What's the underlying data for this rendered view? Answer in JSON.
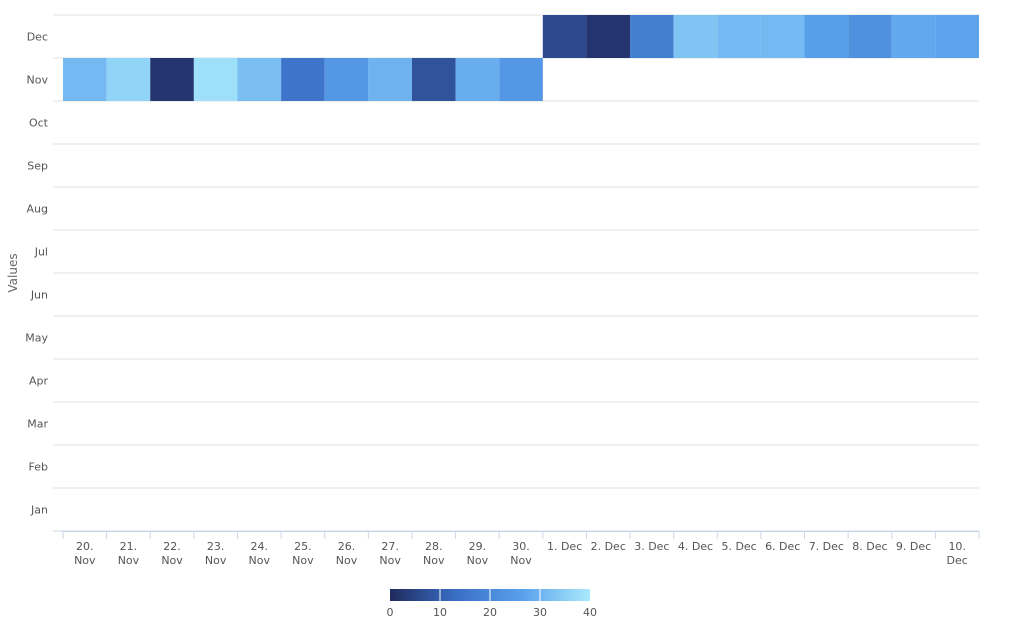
{
  "chart_data": {
    "type": "heatmap",
    "title": "",
    "xlabel": "",
    "ylabel": "Values",
    "x_categories": [
      "20. Nov",
      "21. Nov",
      "22. Nov",
      "23. Nov",
      "24. Nov",
      "25. Nov",
      "26. Nov",
      "27. Nov",
      "28. Nov",
      "29. Nov",
      "30. Nov",
      "1. Dec",
      "2. Dec",
      "3. Dec",
      "4. Dec",
      "5. Dec",
      "6. Dec",
      "7. Dec",
      "8. Dec",
      "9. Dec",
      "10. Dec"
    ],
    "y_categories": [
      "Jan",
      "Feb",
      "Mar",
      "Apr",
      "May",
      "Jun",
      "Jul",
      "Aug",
      "Sep",
      "Oct",
      "Nov",
      "Dec"
    ],
    "cells": [
      {
        "x": "20. Nov",
        "y": "Nov",
        "value": 31
      },
      {
        "x": "21. Nov",
        "y": "Nov",
        "value": 36
      },
      {
        "x": "22. Nov",
        "y": "Nov",
        "value": 2
      },
      {
        "x": "23. Nov",
        "y": "Nov",
        "value": 38
      },
      {
        "x": "24. Nov",
        "y": "Nov",
        "value": 32
      },
      {
        "x": "25. Nov",
        "y": "Nov",
        "value": 15
      },
      {
        "x": "26. Nov",
        "y": "Nov",
        "value": 24
      },
      {
        "x": "27. Nov",
        "y": "Nov",
        "value": 30
      },
      {
        "x": "28. Nov",
        "y": "Nov",
        "value": 8
      },
      {
        "x": "29. Nov",
        "y": "Nov",
        "value": 29
      },
      {
        "x": "30. Nov",
        "y": "Nov",
        "value": 24
      },
      {
        "x": "1. Dec",
        "y": "Dec",
        "value": 6
      },
      {
        "x": "2. Dec",
        "y": "Dec",
        "value": 2
      },
      {
        "x": "3. Dec",
        "y": "Dec",
        "value": 17
      },
      {
        "x": "4. Dec",
        "y": "Dec",
        "value": 33
      },
      {
        "x": "5. Dec",
        "y": "Dec",
        "value": 31
      },
      {
        "x": "6. Dec",
        "y": "Dec",
        "value": 31
      },
      {
        "x": "7. Dec",
        "y": "Dec",
        "value": 26
      },
      {
        "x": "8. Dec",
        "y": "Dec",
        "value": 22
      },
      {
        "x": "9. Dec",
        "y": "Dec",
        "value": 28
      },
      {
        "x": "10. Dec",
        "y": "Dec",
        "value": 27
      }
    ],
    "color_axis": {
      "min": 0,
      "max": 40,
      "ticks": [
        0,
        10,
        20,
        30,
        40
      ],
      "stops": [
        "#202a5e",
        "#3a6fc6",
        "#5aa1ec",
        "#aaeafc"
      ]
    },
    "grid": true,
    "legend": "bottom-center"
  }
}
